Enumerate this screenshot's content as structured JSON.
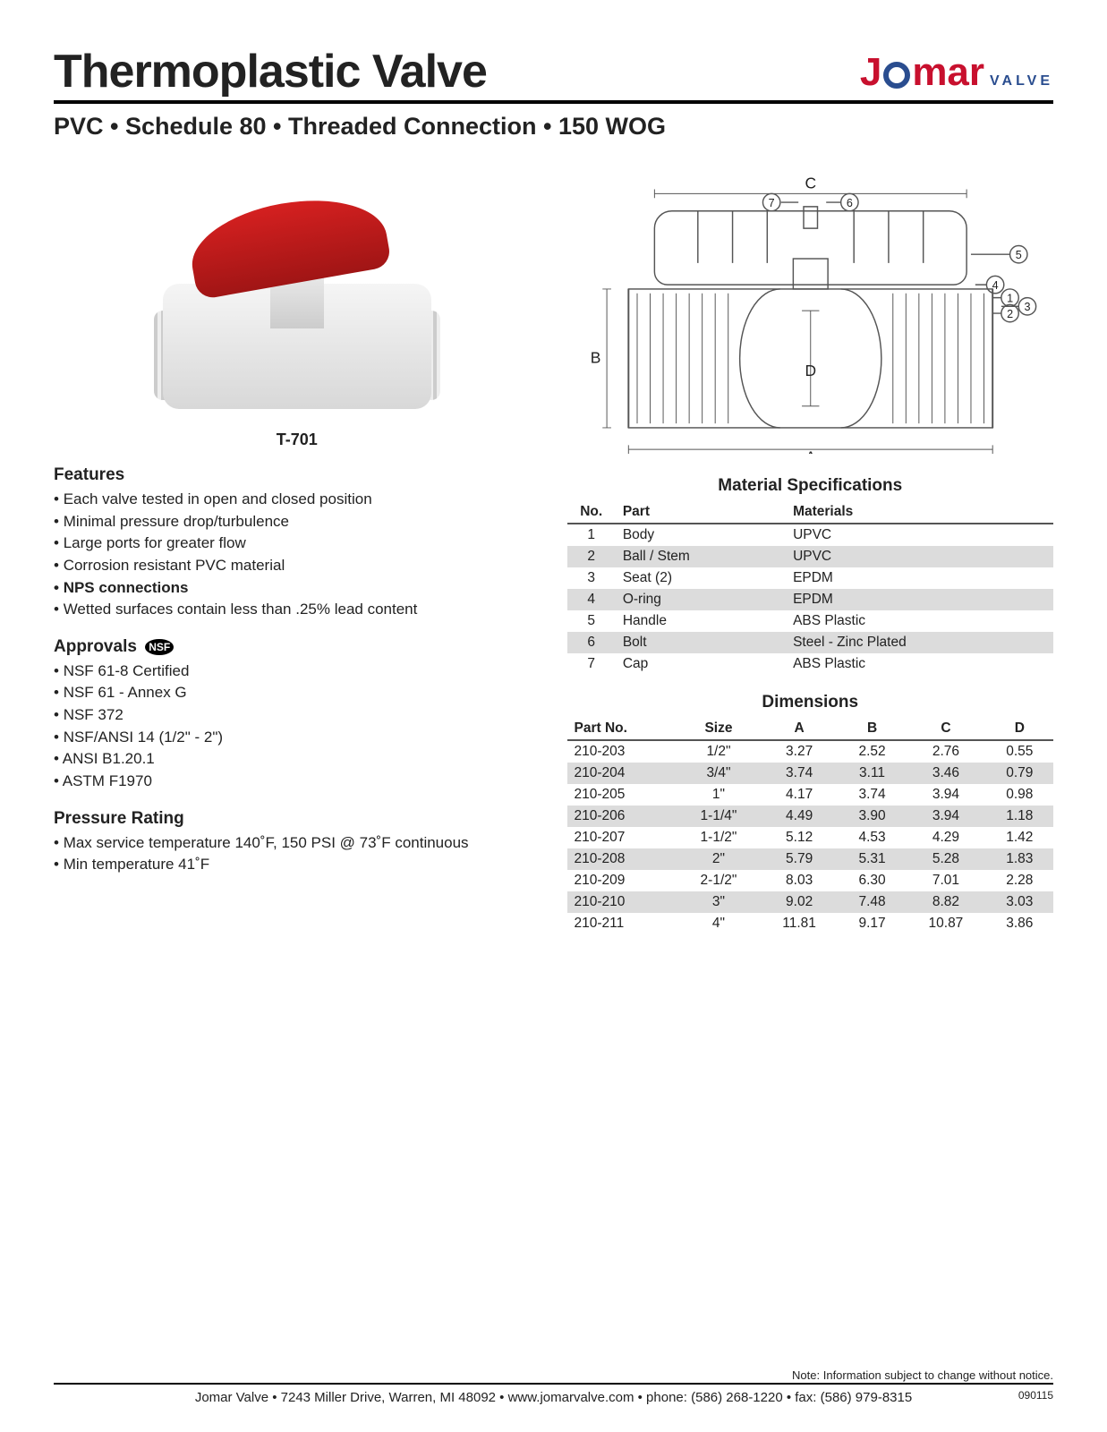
{
  "header": {
    "title": "Thermoplastic Valve",
    "subtitle": "PVC • Schedule 80 • Threaded Connection • 150 WOG",
    "logo": {
      "brand": "Jomar",
      "sub": "VALVE"
    }
  },
  "product": {
    "model": "T-701",
    "handle_color": "#c8102e",
    "body_color": "#e8e8e8"
  },
  "features": {
    "heading": "Features",
    "items": [
      {
        "text": "Each valve tested in open and closed position",
        "bold": false
      },
      {
        "text": "Minimal pressure drop/turbulence",
        "bold": false
      },
      {
        "text": "Large ports for greater flow",
        "bold": false
      },
      {
        "text": "Corrosion resistant PVC material",
        "bold": false
      },
      {
        "text": "NPS connections",
        "bold": true
      },
      {
        "text": "Wetted surfaces contain less than .25% lead content",
        "bold": false
      }
    ]
  },
  "approvals": {
    "heading": "Approvals",
    "badge": "NSF",
    "items": [
      "NSF 61-8 Certified",
      "NSF 61 - Annex G",
      "NSF 372",
      "NSF/ANSI 14 (1/2\" - 2\")",
      "ANSI B1.20.1",
      "ASTM F1970"
    ]
  },
  "pressure": {
    "heading": "Pressure Rating",
    "items": [
      "Max service temperature 140˚F, 150 PSI @ 73˚F  continuous",
      "Min temperature 41˚F"
    ]
  },
  "diagram": {
    "labels": [
      "A",
      "B",
      "C",
      "D"
    ],
    "callouts": [
      "1",
      "2",
      "3",
      "4",
      "5",
      "6",
      "7"
    ],
    "stroke": "#555555"
  },
  "materials": {
    "heading": "Material Specifications",
    "columns": [
      "No.",
      "Part",
      "Materials"
    ],
    "rows": [
      [
        "1",
        "Body",
        "UPVC"
      ],
      [
        "2",
        "Ball / Stem",
        "UPVC"
      ],
      [
        "3",
        "Seat (2)",
        "EPDM"
      ],
      [
        "4",
        "O-ring",
        "EPDM"
      ],
      [
        "5",
        "Handle",
        "ABS Plastic"
      ],
      [
        "6",
        "Bolt",
        "Steel - Zinc Plated"
      ],
      [
        "7",
        "Cap",
        "ABS Plastic"
      ]
    ]
  },
  "dimensions": {
    "heading": "Dimensions",
    "columns": [
      "Part No.",
      "Size",
      "A",
      "B",
      "C",
      "D"
    ],
    "rows": [
      [
        "210-203",
        "1/2\"",
        "3.27",
        "2.52",
        "2.76",
        "0.55"
      ],
      [
        "210-204",
        "3/4\"",
        "3.74",
        "3.11",
        "3.46",
        "0.79"
      ],
      [
        "210-205",
        "1\"",
        "4.17",
        "3.74",
        "3.94",
        "0.98"
      ],
      [
        "210-206",
        "1-1/4\"",
        "4.49",
        "3.90",
        "3.94",
        "1.18"
      ],
      [
        "210-207",
        "1-1/2\"",
        "5.12",
        "4.53",
        "4.29",
        "1.42"
      ],
      [
        "210-208",
        "2\"",
        "5.79",
        "5.31",
        "5.28",
        "1.83"
      ],
      [
        "210-209",
        "2-1/2\"",
        "8.03",
        "6.30",
        "7.01",
        "2.28"
      ],
      [
        "210-210",
        "3\"",
        "9.02",
        "7.48",
        "8.82",
        "3.03"
      ],
      [
        "210-211",
        "4\"",
        "11.81",
        "9.17",
        "10.87",
        "3.86"
      ]
    ]
  },
  "footer": {
    "note": "Note: Information subject to change without notice.",
    "line": "Jomar Valve  •  7243 Miller Drive, Warren, MI 48092  •  www.jomarvalve.com  •  phone: (586) 268-1220  •  fax: (586) 979-8315",
    "code": "090115"
  }
}
